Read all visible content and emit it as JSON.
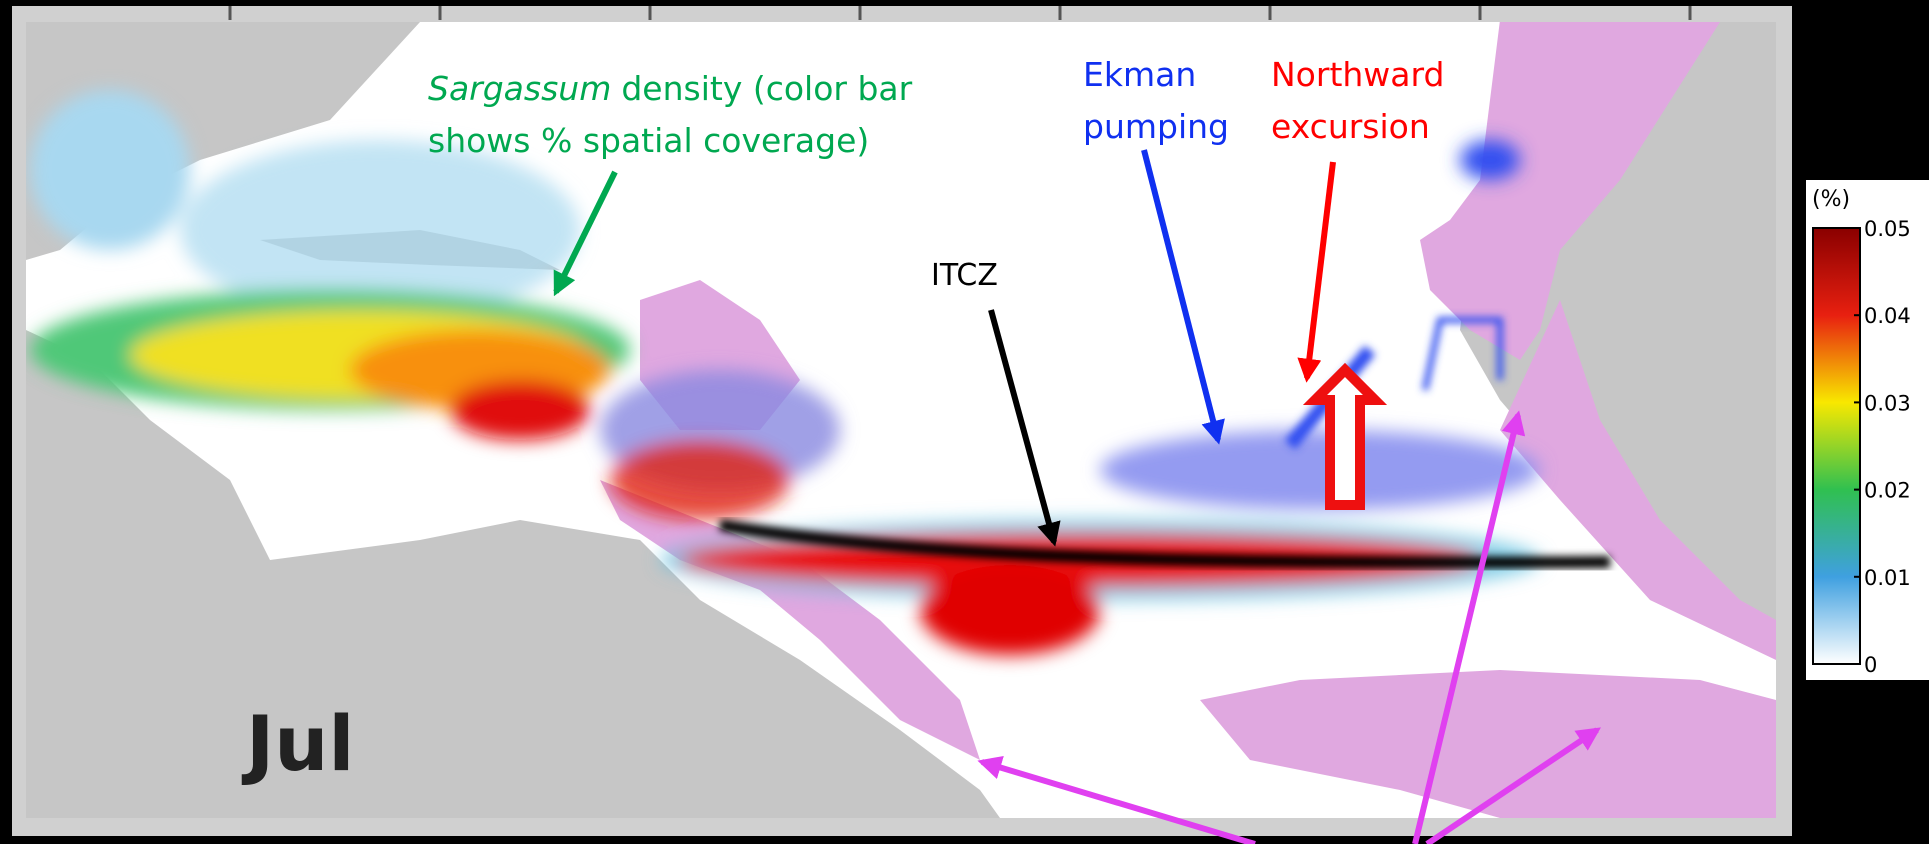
{
  "map_label": "Jul",
  "annotations": {
    "sargassum": {
      "italic": "Sargassum",
      "line1": "density (color bar",
      "line2": "shows % spatial coverage)"
    },
    "ekman": {
      "line1": "Ekman",
      "line2": "pumping"
    },
    "northward": {
      "line1": "Northward",
      "line2": "excursion"
    },
    "itcz": "ITCZ"
  },
  "colorbar": {
    "unit": "(%)",
    "ticks": [
      0.05,
      0.04,
      0.03,
      0.02,
      0.01,
      0
    ]
  }
}
